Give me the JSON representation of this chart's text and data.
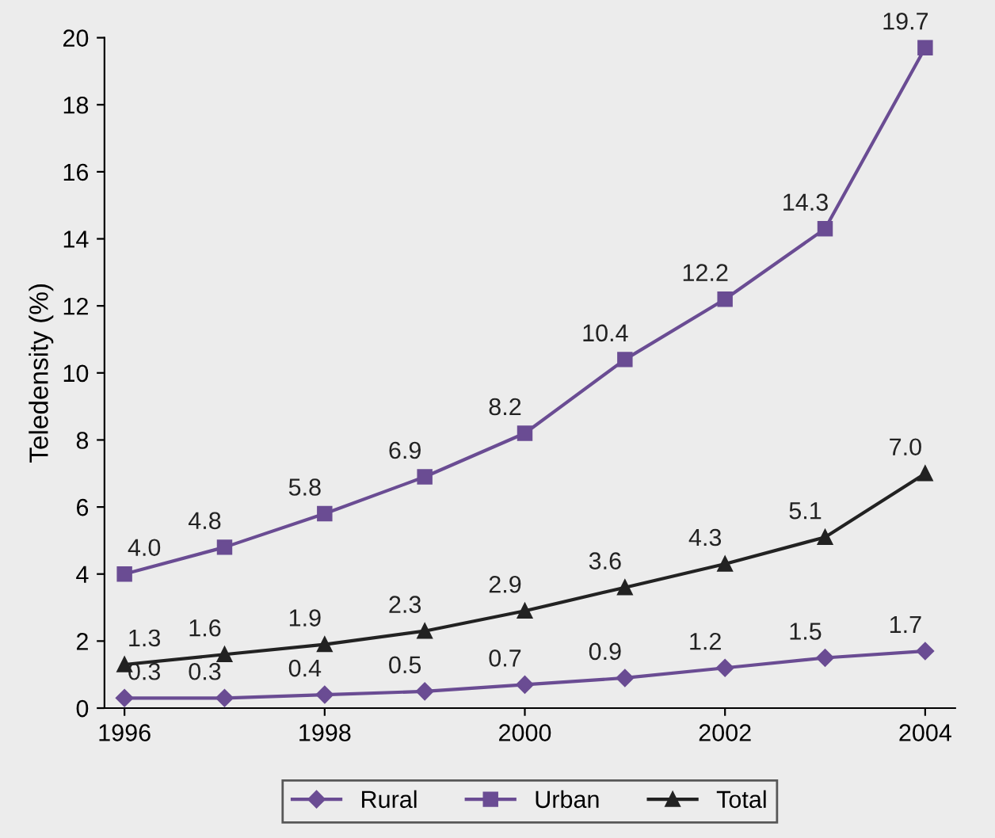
{
  "chart_data": {
    "type": "line",
    "ylabel": "Teledensity (%)",
    "x": [
      1996,
      1997,
      1998,
      1999,
      2000,
      2001,
      2002,
      2003,
      2004
    ],
    "series": [
      {
        "name": "Rural",
        "color": "#6a4c93",
        "marker": "diamond",
        "values": [
          0.3,
          0.3,
          0.4,
          0.5,
          0.7,
          0.9,
          1.2,
          1.5,
          1.7
        ],
        "value_labels": [
          "0.3",
          "0.3",
          "0.4",
          "0.5",
          "0.7",
          "0.9",
          "1.2",
          "1.5",
          "1.7"
        ]
      },
      {
        "name": "Urban",
        "color": "#6a4c93",
        "marker": "square",
        "values": [
          4.0,
          4.8,
          5.8,
          6.9,
          8.2,
          10.4,
          12.2,
          14.3,
          19.7
        ],
        "value_labels": [
          "4.0",
          "4.8",
          "5.8",
          "6.9",
          "8.2",
          "10.4",
          "12.2",
          "14.3",
          "19.7"
        ]
      },
      {
        "name": "Total",
        "color": "#222222",
        "marker": "triangle",
        "values": [
          1.3,
          1.6,
          1.9,
          2.3,
          2.9,
          3.6,
          4.3,
          5.1,
          7.0
        ],
        "value_labels": [
          "1.3",
          "1.6",
          "1.9",
          "2.3",
          "2.9",
          "3.6",
          "4.3",
          "5.1",
          "7.0"
        ]
      }
    ],
    "xlim": [
      1995.8,
      2004.3
    ],
    "xticks": [
      1996,
      1998,
      2000,
      2002,
      2004
    ],
    "ylim": [
      0,
      20
    ],
    "yticks": [
      0,
      2,
      4,
      6,
      8,
      10,
      12,
      14,
      16,
      18,
      20
    ],
    "legend": "bottom",
    "grid": false
  }
}
